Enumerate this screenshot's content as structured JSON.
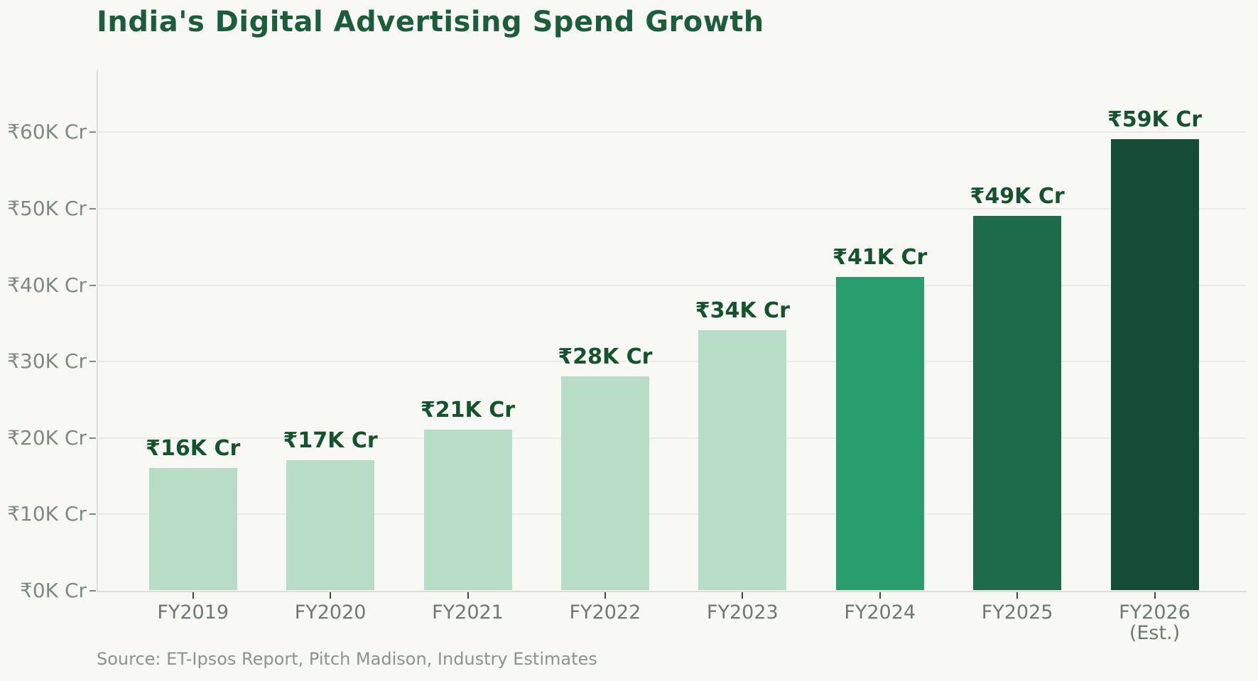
{
  "page": {
    "background": "#f8f9f5",
    "source_note": "Source: ET-Ipsos Report, Pitch Madison, Industry Estimates"
  },
  "chart_data": {
    "type": "bar",
    "title": "India's Digital Advertising Spend Growth",
    "categories": [
      "FY2019",
      "FY2020",
      "FY2021",
      "FY2022",
      "FY2023",
      "FY2024",
      "FY2025",
      "FY2026"
    ],
    "category_sublabels": [
      "",
      "",
      "",
      "",
      "",
      "",
      "",
      "(Est.)"
    ],
    "values": [
      16,
      17,
      21,
      28,
      34,
      41,
      49,
      59
    ],
    "currency_prefix": "₹",
    "unit_suffix": "K Cr",
    "bar_labels": [
      "₹16K Cr",
      "₹17K Cr",
      "₹21K Cr",
      "₹28K Cr",
      "₹34K Cr",
      "₹41K Cr",
      "₹49K Cr",
      "₹59K Cr"
    ],
    "y_ticks": [
      0,
      10,
      20,
      30,
      40,
      50,
      60
    ],
    "y_tick_labels": [
      "₹0K Cr",
      "₹10K Cr",
      "₹20K Cr",
      "₹30K Cr",
      "₹40K Cr",
      "₹50K Cr",
      "₹60K Cr"
    ],
    "ylim": [
      0,
      68
    ],
    "grid": "horizontal",
    "legend_position": "none",
    "bar_colors": [
      "#b7ddc7",
      "#b7ddc7",
      "#b7ddc7",
      "#b7ddc7",
      "#b7ddc7",
      "#2a9d6e",
      "#1d6b4b",
      "#154c35"
    ],
    "colors": {
      "title": "#1c5e3c",
      "bar_label": "#14532d",
      "axis_label": "#7e8983",
      "x_label": "#6f7873",
      "x_tick": "#3f4440",
      "gridline": "#eaebe7",
      "axis_line": "#dcddd9",
      "source": "#8b938d",
      "background": "#f8f9f5"
    }
  }
}
